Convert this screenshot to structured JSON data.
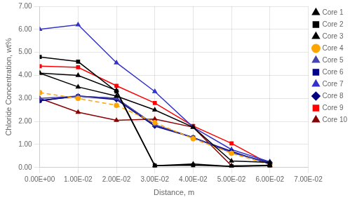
{
  "chart_data": {
    "type": "line",
    "x_label": "Distance, m",
    "y_label": "Chloride Concentration, wt%",
    "x": [
      0.0,
      0.01,
      0.02,
      0.03,
      0.04,
      0.05,
      0.06
    ],
    "series": [
      {
        "name": "Core 1",
        "color": "#000000",
        "marker": "triangle",
        "line_style": "solid",
        "values": [
          4.1,
          4.0,
          3.35,
          0.08,
          0.15,
          0.05,
          0.1
        ]
      },
      {
        "name": "Core 2",
        "color": "#000000",
        "marker": "square",
        "line_style": "solid",
        "values": [
          4.8,
          4.6,
          3.3,
          0.08,
          0.1,
          0.05,
          0.08
        ]
      },
      {
        "name": "Core 3",
        "color": "#000000",
        "marker": "triangle",
        "line_style": "solid",
        "values": [
          4.1,
          3.5,
          3.1,
          2.5,
          1.75,
          0.28,
          0.22
        ]
      },
      {
        "name": "Core 4",
        "color": "#FFA500",
        "marker": "circle",
        "line_style": "dashed",
        "values": [
          3.25,
          3.0,
          2.7,
          1.95,
          1.25,
          0.62,
          0.12
        ]
      },
      {
        "name": "Core 5",
        "color": "#4444AA",
        "marker": "triangle",
        "line_style": "solid",
        "values": [
          3.0,
          3.1,
          3.0,
          1.85,
          1.3,
          0.65,
          0.2
        ]
      },
      {
        "name": "Core 6",
        "color": "#00008B",
        "marker": "square",
        "line_style": "solid",
        "values": [
          2.9,
          3.1,
          3.0,
          1.85,
          1.3,
          0.7,
          0.15
        ]
      },
      {
        "name": "Core 7",
        "color": "#3333CC",
        "marker": "triangle",
        "line_style": "solid",
        "values": [
          6.0,
          6.2,
          4.55,
          3.3,
          1.75,
          0.78,
          0.25
        ]
      },
      {
        "name": "Core 8",
        "color": "#000080",
        "marker": "diamond",
        "line_style": "solid",
        "values": [
          2.9,
          3.1,
          2.95,
          1.8,
          1.3,
          0.65,
          0.22
        ]
      },
      {
        "name": "Core 9",
        "color": "#FF0000",
        "marker": "square",
        "line_style": "solid",
        "values": [
          4.4,
          4.35,
          3.55,
          2.8,
          1.8,
          1.05,
          0.15
        ]
      },
      {
        "name": "Core 10",
        "color": "#8B0000",
        "marker": "triangle",
        "line_style": "solid",
        "values": [
          3.0,
          2.4,
          2.05,
          2.1,
          1.75,
          0.08,
          0.08
        ]
      }
    ],
    "xlim": [
      0.0,
      0.07
    ],
    "ylim": [
      0.0,
      7.0
    ],
    "xticks": [
      {
        "value": 0.0,
        "label": "0.00E+00"
      },
      {
        "value": 0.01,
        "label": "1.00E-02"
      },
      {
        "value": 0.02,
        "label": "2.00E-02"
      },
      {
        "value": 0.03,
        "label": "3.00E-02"
      },
      {
        "value": 0.04,
        "label": "4.00E-02"
      },
      {
        "value": 0.05,
        "label": "5.00E-02"
      },
      {
        "value": 0.06,
        "label": "6.00E-02"
      },
      {
        "value": 0.07,
        "label": "7.00E-02"
      }
    ],
    "yticks": [
      {
        "value": 0.0,
        "label": "0.00"
      },
      {
        "value": 1.0,
        "label": "1.00"
      },
      {
        "value": 2.0,
        "label": "2.00"
      },
      {
        "value": 3.0,
        "label": "3.00"
      },
      {
        "value": 4.0,
        "label": "4.00"
      },
      {
        "value": 5.0,
        "label": "5.00"
      },
      {
        "value": 6.0,
        "label": "6.00"
      },
      {
        "value": 7.0,
        "label": "7.00"
      }
    ],
    "grid": true,
    "legend": "upper right"
  }
}
